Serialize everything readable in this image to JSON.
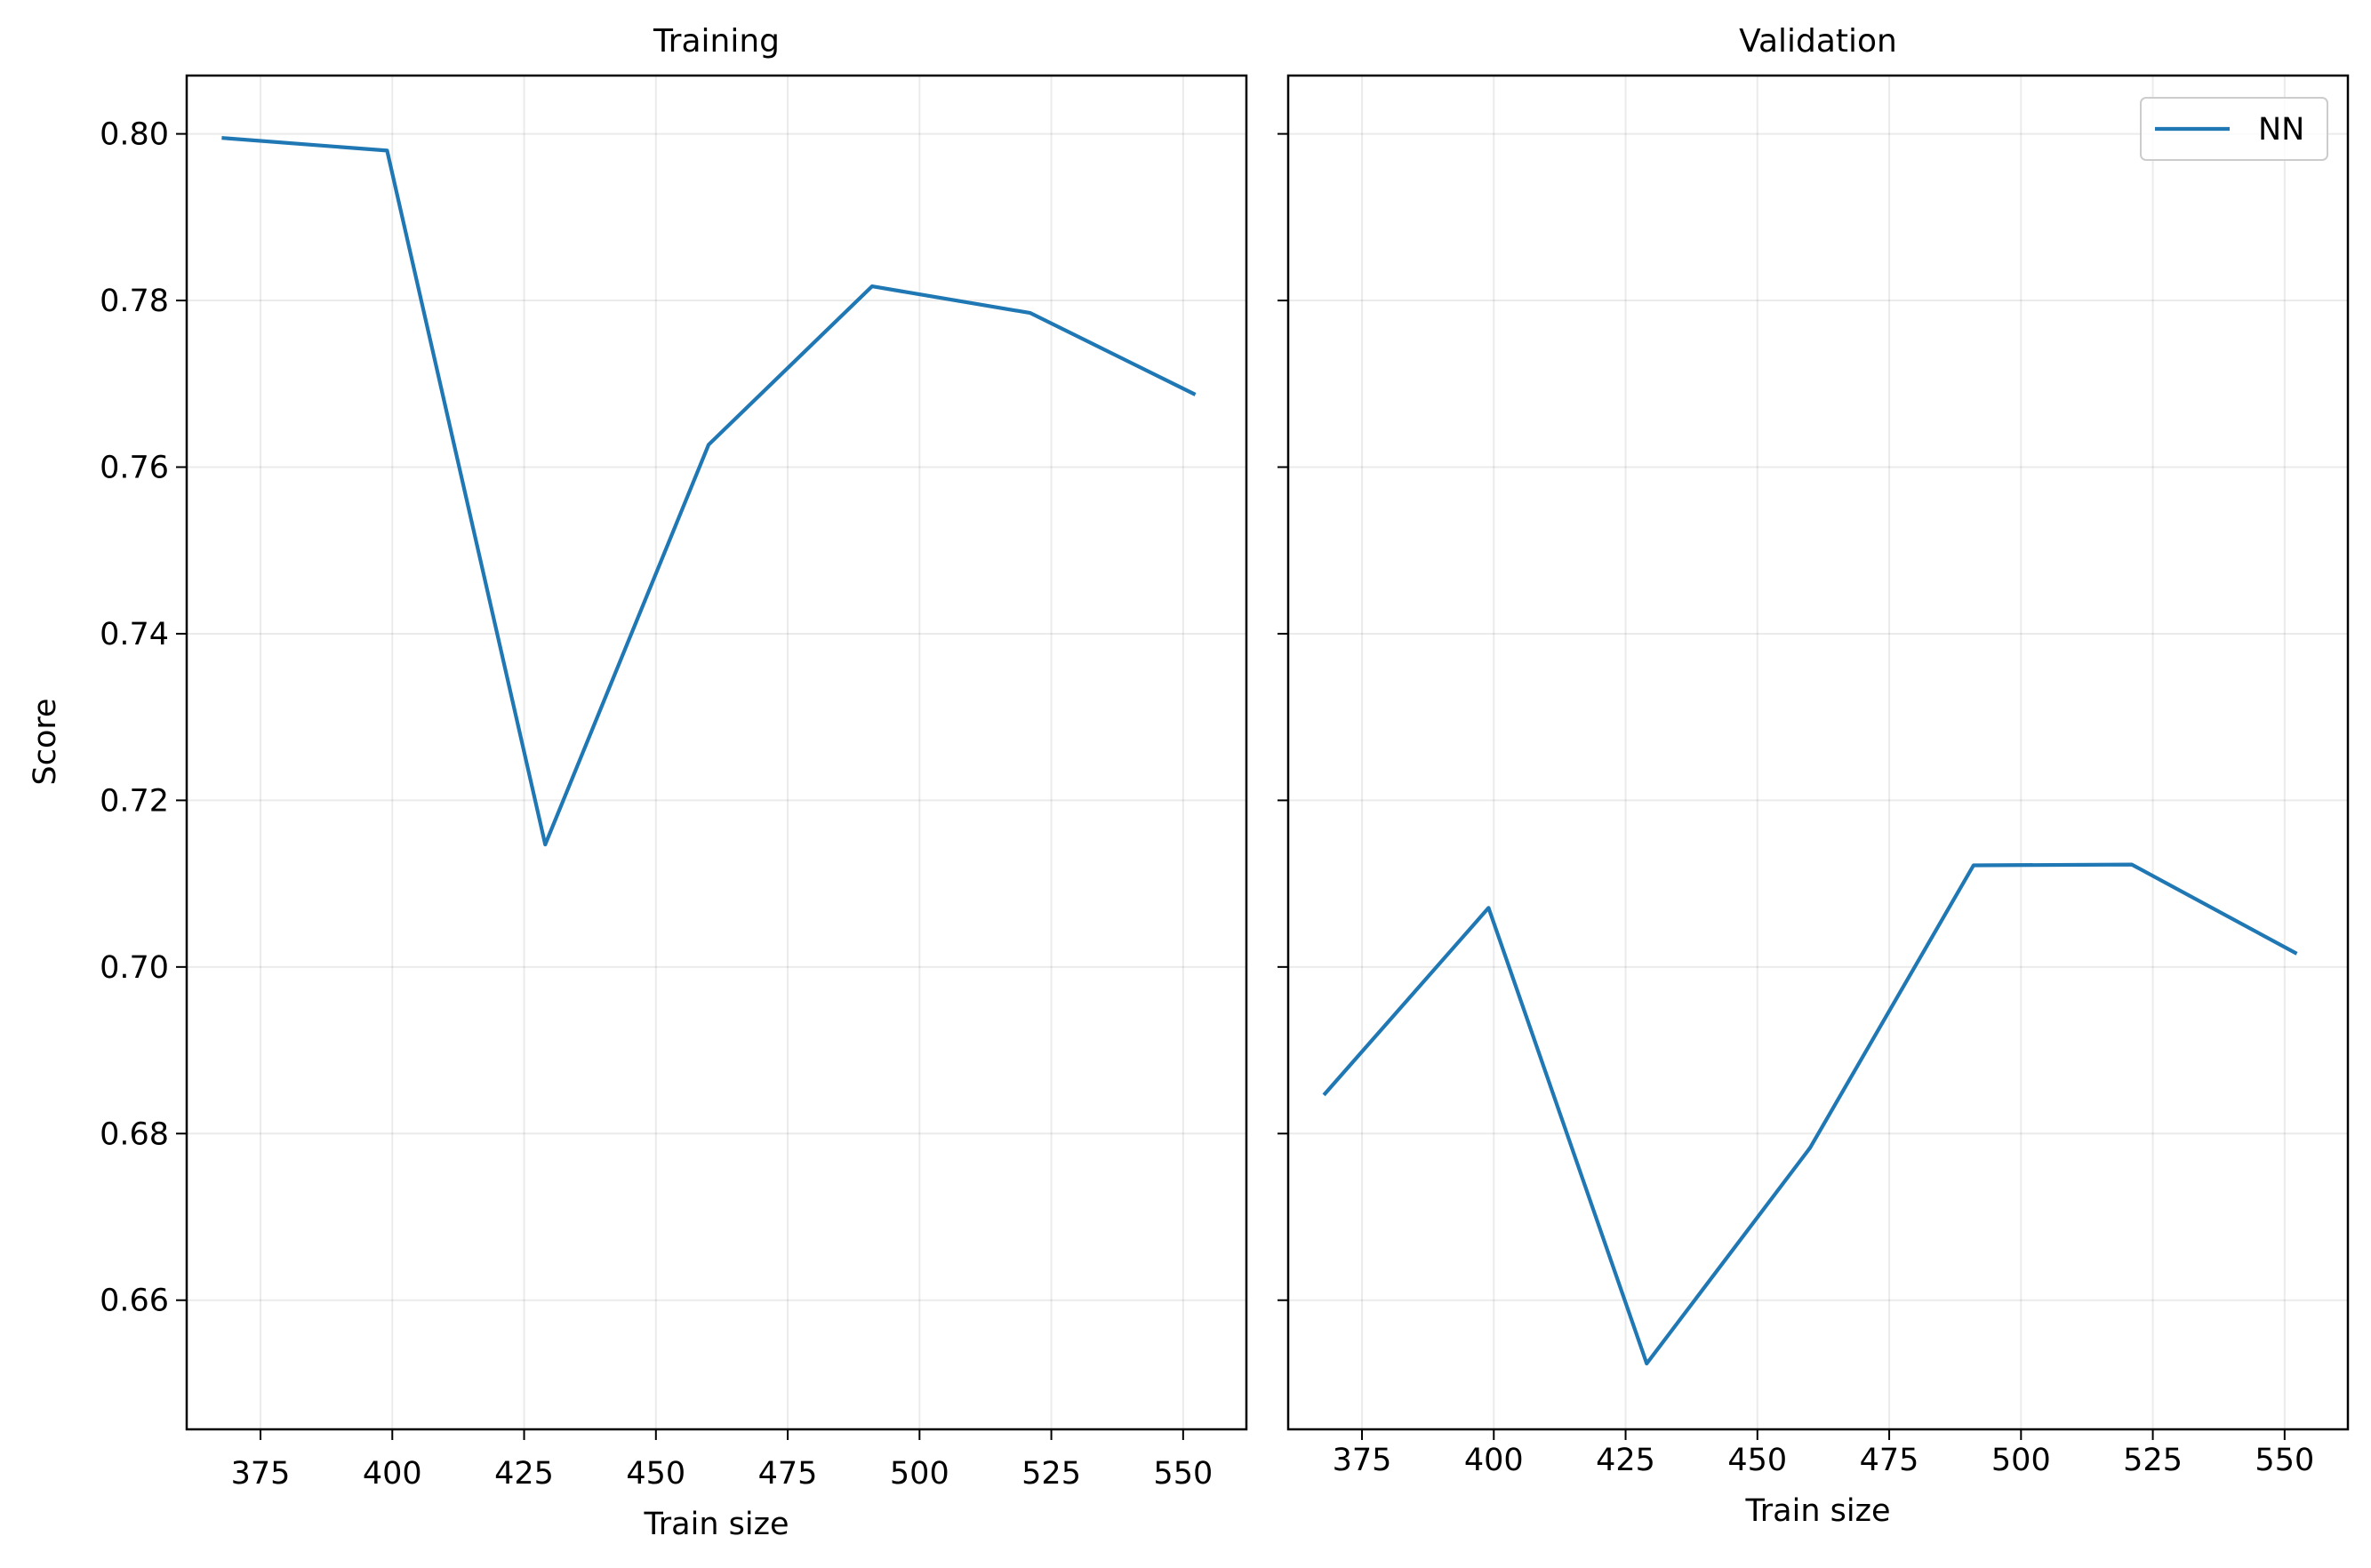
{
  "colors": {
    "series": "#1f77b4",
    "grid": "#b0b0b0"
  },
  "legend": {
    "label": "NN",
    "placement": "upper right",
    "panel": 1
  },
  "shared": {
    "ylabel": "Score",
    "sharey": true
  },
  "chart_data": [
    {
      "type": "line",
      "title": "Training",
      "xlabel": "Train size",
      "ylabel": "Score",
      "grid": true,
      "xlim": [
        361,
        562
      ],
      "ylim": [
        0.6445,
        0.807
      ],
      "xticks": [
        375,
        400,
        425,
        450,
        475,
        500,
        525,
        550
      ],
      "yticks": [
        0.66,
        0.68,
        0.7,
        0.72,
        0.74,
        0.76,
        0.78,
        0.8
      ],
      "ytick_labels": [
        "0.66",
        "0.68",
        "0.70",
        "0.72",
        "0.74",
        "0.76",
        "0.78",
        "0.80"
      ],
      "series": [
        {
          "name": "NN",
          "x": [
            368,
            399,
            429,
            460,
            491,
            521,
            552
          ],
          "y": [
            0.7995,
            0.798,
            0.7147,
            0.7627,
            0.7817,
            0.7785,
            0.7688
          ]
        }
      ]
    },
    {
      "type": "line",
      "title": "Validation",
      "xlabel": "Train size",
      "grid": true,
      "xlim": [
        361,
        562
      ],
      "ylim": [
        0.6445,
        0.807
      ],
      "xticks": [
        375,
        400,
        425,
        450,
        475,
        500,
        525,
        550
      ],
      "yticks": [
        0.66,
        0.68,
        0.7,
        0.72,
        0.74,
        0.76,
        0.78,
        0.8
      ],
      "series": [
        {
          "name": "NN",
          "x": [
            368,
            399,
            429,
            460,
            491,
            521,
            552
          ],
          "y": [
            0.6848,
            0.7071,
            0.6524,
            0.6783,
            0.7122,
            0.7123,
            0.7017
          ]
        }
      ]
    }
  ]
}
